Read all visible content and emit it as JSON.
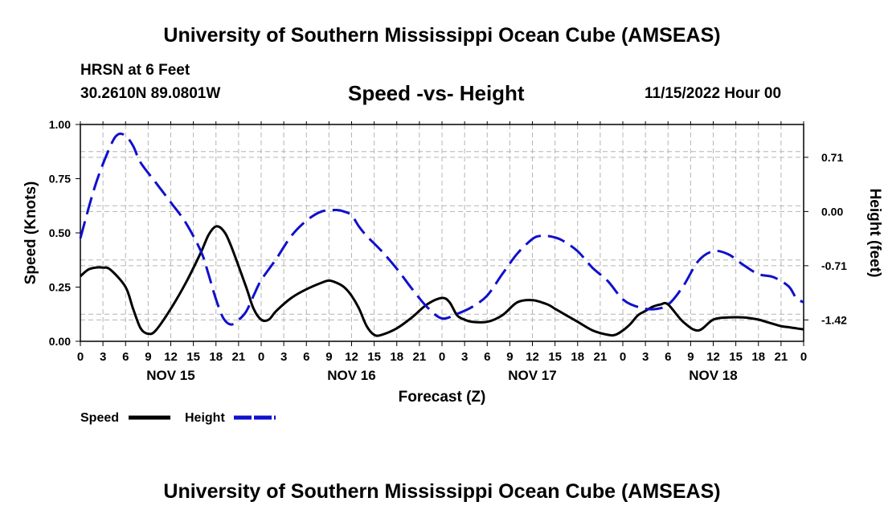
{
  "header": {
    "title": "University of Southern Mississippi Ocean Cube (AMSEAS)",
    "station": "HRSN at 6 Feet",
    "coordinates": "30.2610N  89.0801W",
    "subtitle": "Speed -vs- Height",
    "datetime": "11/15/2022 Hour 00"
  },
  "footer": {
    "title": "University of Southern Mississippi Ocean Cube (AMSEAS)"
  },
  "chart_data": {
    "type": "line",
    "title": "Speed -vs- Height",
    "xlabel": "Forecast (Z)",
    "ylabel": "Speed (Knots)",
    "y2label": "Height (feet)",
    "grid": true,
    "xlim": [
      0,
      96
    ],
    "ylim": [
      0,
      1.0
    ],
    "y2lim": [
      -1.7,
      1.14
    ],
    "x_ticks": [
      0,
      3,
      6,
      9,
      12,
      15,
      18,
      21,
      24,
      27,
      30,
      33,
      36,
      39,
      42,
      45,
      48,
      51,
      54,
      57,
      60,
      63,
      66,
      69,
      72,
      75,
      78,
      81,
      84,
      87,
      90,
      93,
      96
    ],
    "x_tick_labels": [
      "0",
      "3",
      "6",
      "9",
      "12",
      "15",
      "18",
      "21",
      "0",
      "3",
      "6",
      "9",
      "12",
      "15",
      "18",
      "21",
      "0",
      "3",
      "6",
      "9",
      "12",
      "15",
      "18",
      "21",
      "0",
      "3",
      "6",
      "9",
      "12",
      "15",
      "18",
      "21",
      "0"
    ],
    "day_labels": [
      {
        "x": 12,
        "label": "NOV 15"
      },
      {
        "x": 36,
        "label": "NOV 16"
      },
      {
        "x": 60,
        "label": "NOV 17"
      },
      {
        "x": 84,
        "label": "NOV 18"
      }
    ],
    "y_ticks": [
      0.0,
      0.25,
      0.5,
      0.75,
      1.0
    ],
    "y_tick_labels": [
      "0.00",
      "0.25",
      "0.50",
      "0.75",
      "1.00"
    ],
    "y2_ticks": [
      0.71,
      0.0,
      -0.71,
      -1.42
    ],
    "y2_tick_labels": [
      "0.71",
      "0.00",
      "-0.71",
      "-1.42"
    ],
    "legend": [
      {
        "name": "Speed",
        "color": "#000000",
        "style": "solid"
      },
      {
        "name": "Height",
        "color": "#1010cc",
        "style": "dashed"
      }
    ],
    "series": [
      {
        "name": "Speed",
        "axis": "left",
        "color": "#000000",
        "x": [
          0,
          1,
          2,
          3,
          4,
          6,
          7,
          8,
          9,
          10,
          12,
          14,
          16,
          17,
          18,
          19,
          20,
          22,
          23,
          24,
          25,
          26,
          28,
          30,
          32,
          33,
          34,
          35,
          36,
          37,
          38,
          39,
          40,
          42,
          44,
          46,
          48,
          49,
          50,
          51,
          52,
          54,
          56,
          58,
          60,
          62,
          63,
          64,
          66,
          68,
          70,
          71,
          72,
          73,
          74,
          75,
          76,
          77,
          78,
          80,
          82,
          84,
          86,
          88,
          90,
          91,
          92,
          93,
          94,
          95,
          96
        ],
        "values": [
          0.3,
          0.33,
          0.34,
          0.34,
          0.33,
          0.25,
          0.15,
          0.06,
          0.035,
          0.05,
          0.15,
          0.27,
          0.41,
          0.49,
          0.53,
          0.51,
          0.44,
          0.25,
          0.15,
          0.1,
          0.1,
          0.14,
          0.2,
          0.24,
          0.27,
          0.28,
          0.27,
          0.25,
          0.21,
          0.15,
          0.07,
          0.03,
          0.03,
          0.06,
          0.11,
          0.17,
          0.2,
          0.18,
          0.12,
          0.1,
          0.09,
          0.09,
          0.12,
          0.18,
          0.19,
          0.17,
          0.15,
          0.13,
          0.09,
          0.05,
          0.03,
          0.03,
          0.05,
          0.08,
          0.12,
          0.14,
          0.16,
          0.17,
          0.17,
          0.09,
          0.05,
          0.1,
          0.11,
          0.11,
          0.1,
          0.09,
          0.08,
          0.07,
          0.065,
          0.06,
          0.055
        ]
      },
      {
        "name": "Height",
        "axis": "right",
        "color": "#1010cc",
        "x": [
          0,
          2,
          4,
          5,
          6,
          7,
          8,
          10,
          12,
          14,
          16,
          17,
          18,
          19,
          20,
          21,
          22,
          23,
          24,
          26,
          28,
          30,
          32,
          34,
          35,
          36,
          37,
          38,
          40,
          42,
          44,
          46,
          48,
          50,
          52,
          54,
          56,
          58,
          60,
          61,
          62,
          63,
          64,
          66,
          68,
          70,
          72,
          74,
          76,
          78,
          80,
          82,
          84,
          86,
          88,
          90,
          92,
          94,
          95,
          96
        ],
        "values": [
          -0.35,
          0.35,
          0.86,
          1.01,
          0.99,
          0.86,
          0.64,
          0.38,
          0.12,
          -0.15,
          -0.52,
          -0.82,
          -1.15,
          -1.4,
          -1.48,
          -1.42,
          -1.31,
          -1.1,
          -0.9,
          -0.62,
          -0.32,
          -0.12,
          0.0,
          0.02,
          0.0,
          -0.05,
          -0.2,
          -0.32,
          -0.52,
          -0.75,
          -1.01,
          -1.25,
          -1.4,
          -1.34,
          -1.25,
          -1.1,
          -0.82,
          -0.55,
          -0.36,
          -0.32,
          -0.32,
          -0.34,
          -0.38,
          -0.52,
          -0.74,
          -0.91,
          -1.15,
          -1.25,
          -1.28,
          -1.22,
          -0.98,
          -0.65,
          -0.52,
          -0.56,
          -0.7,
          -0.82,
          -0.86,
          -0.98,
          -1.13,
          -1.19
        ]
      }
    ]
  }
}
